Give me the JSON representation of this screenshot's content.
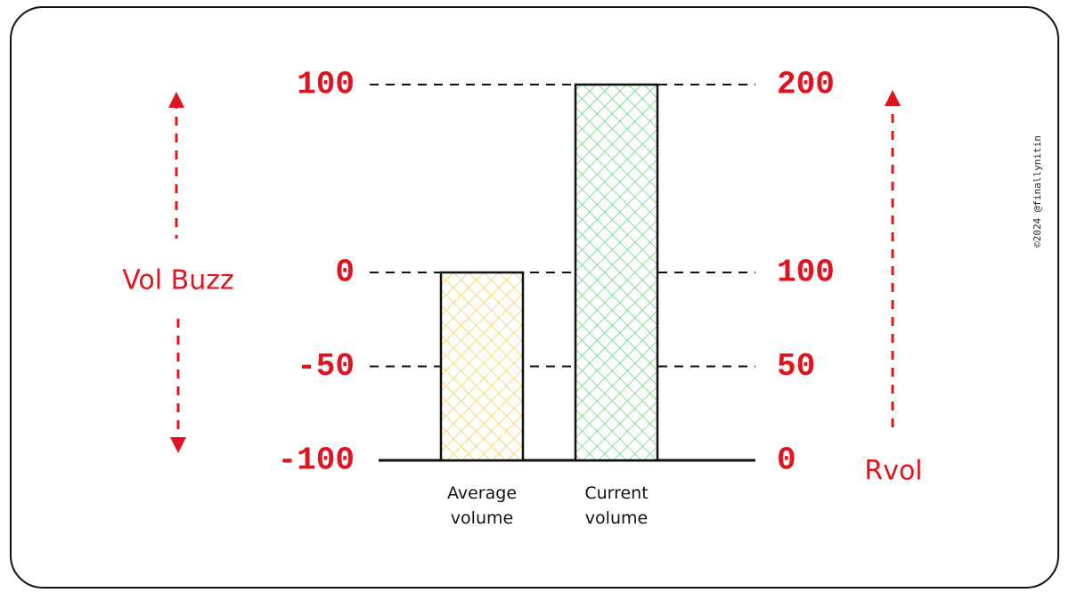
{
  "chart_data": {
    "type": "bar",
    "categories": [
      "Average volume",
      "Current volume"
    ],
    "values": [
      100,
      200
    ],
    "axis": "y2",
    "colors": [
      "#f2cf4a",
      "#5fd47a"
    ],
    "ylabel": "Vol Buzz",
    "y2label": "Rvol",
    "ylim": [
      -100,
      100
    ],
    "yticks": [
      -100,
      -50,
      0,
      100
    ],
    "y2lim": [
      0,
      200
    ],
    "y2ticks": [
      0,
      50,
      100,
      200
    ],
    "grid": true,
    "credit": "©2024 @finallynitin"
  }
}
